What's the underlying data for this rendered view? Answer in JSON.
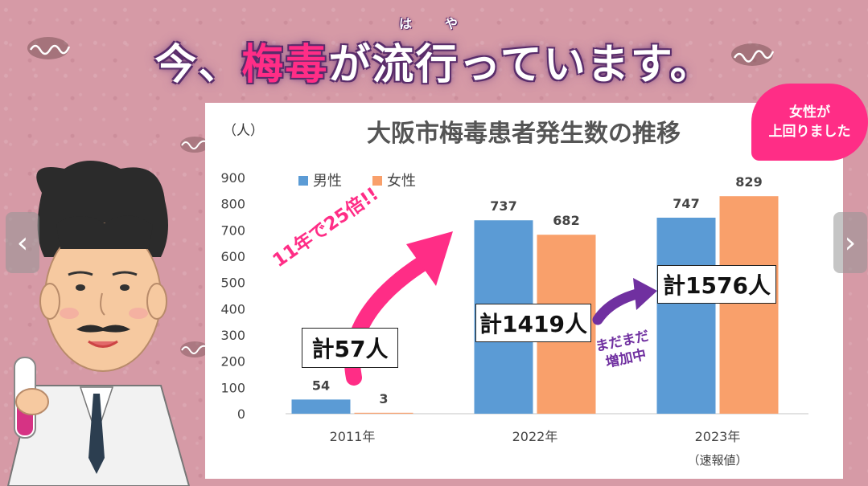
{
  "headline": {
    "part1": "今、",
    "part2": "梅毒",
    "part3": "が流行っています。",
    "ruby1": "は",
    "ruby2": "や"
  },
  "callout": {
    "line1": "女性が",
    "line2": "上回りました"
  },
  "annotations": {
    "growth": "11年で25倍!!",
    "still": "まだまだ",
    "increasing": "増加中",
    "total_2011": "計57人",
    "total_2022": "計1419人",
    "total_2023": "計1576人"
  },
  "colors": {
    "male": "#5b9bd5",
    "female": "#f9a06b",
    "accent": "#ff2d86",
    "purple": "#7030a0"
  },
  "chart_data": {
    "type": "bar",
    "title": "大阪市梅毒患者発生数の推移",
    "ylabel": "（人）",
    "categories": [
      "2011年",
      "2022年",
      "2023年"
    ],
    "category_notes": [
      "",
      "",
      "（速報値）"
    ],
    "ylim": [
      0,
      900
    ],
    "yticks": [
      0,
      100,
      200,
      300,
      400,
      500,
      600,
      700,
      800,
      900
    ],
    "legend_position": "top-left",
    "grid": false,
    "series": [
      {
        "name": "男性",
        "values": [
          54,
          737,
          747
        ],
        "color": "#5b9bd5"
      },
      {
        "name": "女性",
        "values": [
          3,
          682,
          829
        ],
        "color": "#f9a06b"
      }
    ]
  },
  "nav": {
    "prev": "‹",
    "next": "›"
  }
}
